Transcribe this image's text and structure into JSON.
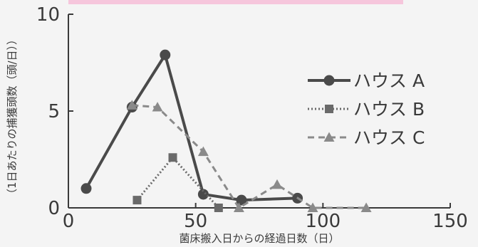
{
  "chart_data": {
    "type": "line",
    "xlabel": "菌床搬入日からの経過日数（日）",
    "ylabel": "（1日あたりの捕獲頭数（頭/日））",
    "xlim": [
      0,
      150
    ],
    "ylim": [
      0,
      10
    ],
    "x_ticks": [
      "0",
      "50",
      "100",
      "150"
    ],
    "y_ticks": [
      "0",
      "5",
      "10"
    ],
    "grid": false,
    "legend_position": "right",
    "series": [
      {
        "name": "ハウス A",
        "color": "#4a4a4a",
        "line": "solid",
        "marker": "circle",
        "points": [
          [
            7,
            1.0
          ],
          [
            25,
            5.2
          ],
          [
            38,
            7.9
          ],
          [
            53,
            0.7
          ],
          [
            68,
            0.4
          ],
          [
            90,
            0.5
          ]
        ]
      },
      {
        "name": "ハウス B",
        "color": "#6a6a6a",
        "line": "dotted",
        "marker": "square",
        "points": [
          [
            27,
            0.4
          ],
          [
            41,
            2.6
          ],
          [
            59,
            0.0
          ]
        ]
      },
      {
        "name": "ハウス C",
        "color": "#8a8a8a",
        "line": "dashed",
        "marker": "triangle",
        "points": [
          [
            25,
            5.3
          ],
          [
            35,
            5.2
          ],
          [
            53,
            2.9
          ],
          [
            67,
            0.0
          ],
          [
            82,
            1.2
          ],
          [
            96,
            0.0
          ],
          [
            117,
            0.0
          ]
        ]
      }
    ]
  }
}
